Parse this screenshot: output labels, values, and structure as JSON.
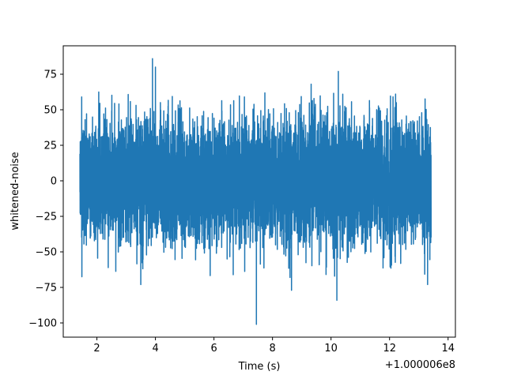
{
  "chart_data": {
    "type": "line",
    "title": "",
    "xlabel": "Time (s)",
    "ylabel": "whitened-noise",
    "x_offset_label": "+1.000006e8",
    "xlim": [
      0.85,
      14.25
    ],
    "ylim": [
      -110,
      95
    ],
    "x_ticks": [
      2,
      4,
      6,
      8,
      10,
      12,
      14
    ],
    "x_tick_labels": [
      "2",
      "4",
      "6",
      "8",
      "10",
      "12",
      "14"
    ],
    "y_ticks": [
      75,
      50,
      25,
      0,
      -25,
      -50,
      -75,
      -100
    ],
    "y_tick_labels": [
      "75",
      "50",
      "25",
      "0",
      "−25",
      "−50",
      "−75",
      "−100"
    ],
    "grid": false,
    "legend": "none",
    "series": [
      {
        "color": "#1f77b4",
        "x_range": [
          1.42,
          13.42
        ],
        "envelope_sigma": 25,
        "spikes": [
          {
            "x": 3.9,
            "y": 86
          },
          {
            "x": 10.25,
            "y": 77
          },
          {
            "x": 4.0,
            "y": 80
          },
          {
            "x": 7.45,
            "y": -101
          },
          {
            "x": 10.2,
            "y": -84
          },
          {
            "x": 8.65,
            "y": -77
          },
          {
            "x": 13.3,
            "y": -73
          },
          {
            "x": 3.5,
            "y": -73
          },
          {
            "x": 1.48,
            "y": -63
          },
          {
            "x": 1.48,
            "y": 59
          }
        ]
      }
    ]
  }
}
